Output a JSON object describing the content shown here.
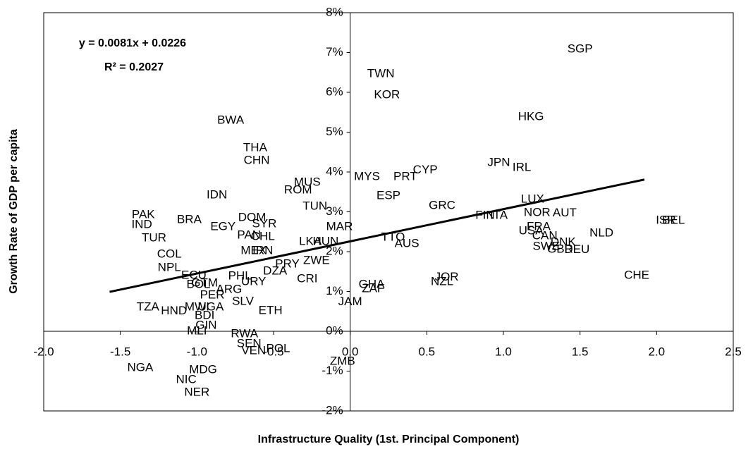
{
  "chart_data": {
    "type": "scatter",
    "x_label": "Infrastructure Quality (1st. Principal Component)",
    "y_label": "Growth Rate of GDP per capita",
    "annotations": [
      "y = 0.0081x + 0.0226",
      "R² = 0.2027"
    ],
    "xlim": [
      -2,
      2.5
    ],
    "ylim": [
      -2,
      8
    ],
    "xticks": [
      {
        "value": -2,
        "label": "-2.0"
      },
      {
        "value": -1.5,
        "label": "-1.5"
      },
      {
        "value": -1,
        "label": "-1.0"
      },
      {
        "value": -0.5,
        "label": "-0.5"
      },
      {
        "value": 0,
        "label": "0.0"
      },
      0.5,
      {
        "value": 1,
        "label": "1.0"
      },
      1.5,
      {
        "value": 2,
        "label": "2.0"
      },
      2.5
    ],
    "yticks": [
      {
        "value": -2,
        "label": "-2%"
      },
      {
        "value": -1,
        "label": "-1%"
      },
      {
        "value": 0,
        "label": "0%"
      },
      {
        "value": 1,
        "label": "1%"
      },
      {
        "value": 2,
        "label": "2%"
      },
      {
        "value": 3,
        "label": "3%"
      },
      {
        "value": 4,
        "label": "4%"
      },
      {
        "value": 5,
        "label": "5%"
      },
      {
        "value": 6,
        "label": "6%"
      },
      {
        "value": 7,
        "label": "7%"
      },
      {
        "value": 8,
        "label": "8%"
      }
    ],
    "trendline": {
      "x": [
        -1.57,
        1.92
      ],
      "y": [
        0.99,
        3.81
      ],
      "color": "#000000"
    },
    "points": {
      "labels": [
        "SGP",
        "TWN",
        "KOR",
        "HKG",
        "BWA",
        "THA",
        "CHN",
        "JPN",
        "IRL",
        "CYP",
        "MYS",
        "PRT",
        "MUS",
        "ROM",
        "IDN",
        "ESP",
        "LUX",
        "GRC",
        "TUN",
        "PAK",
        "FIN",
        "ITA",
        "NOR",
        "AUT",
        "DOM",
        "BRA",
        "ISR",
        "BEL",
        "IND",
        "SYR",
        "EGY",
        "MAR",
        "FRA",
        "USA",
        "NLD",
        "PAN",
        "CHL",
        "TUR",
        "CAN",
        "TTO",
        "LKA",
        "HUN",
        "DNK",
        "AUS",
        "SWE",
        "GBR",
        "DEU",
        "MEX",
        "IRN",
        "COL",
        "ZWE",
        "NPL",
        "PRY",
        "DZA",
        "CHE",
        "ECU",
        "PHL",
        "URY",
        "CRI",
        "JOR",
        "NZL",
        "GHA",
        "ZAF",
        "GTM",
        "BOL",
        "ARG",
        "PER",
        "SLV",
        "ETH",
        "TZA",
        "HND",
        "MWI",
        "UGA",
        "BDI",
        "GIN",
        "MLI",
        "JAM",
        "RWA",
        "SEN",
        "VEN",
        "POL",
        "ZMB",
        "NGA",
        "MDG",
        "NIC",
        "NER"
      ],
      "x": [
        1.5,
        0.2,
        0.24,
        1.18,
        -0.78,
        -0.62,
        -0.61,
        0.97,
        1.12,
        0.49,
        0.11,
        0.36,
        -0.28,
        -0.34,
        -0.87,
        0.25,
        1.19,
        0.6,
        -0.23,
        -1.35,
        0.88,
        0.97,
        1.22,
        1.4,
        -0.64,
        -1.05,
        2.06,
        2.11,
        -1.36,
        -0.56,
        -0.83,
        -0.07,
        1.23,
        1.18,
        1.64,
        -0.66,
        -0.57,
        -1.28,
        1.27,
        0.28,
        -0.26,
        -0.16,
        1.39,
        0.37,
        1.28,
        1.37,
        1.48,
        -0.63,
        -0.57,
        -1.18,
        -0.22,
        -1.18,
        -0.41,
        -0.49,
        1.87,
        -1.02,
        -0.72,
        -0.63,
        -0.28,
        0.63,
        0.6,
        0.14,
        0.15,
        -0.95,
        -0.99,
        -0.79,
        -0.9,
        -0.7,
        -0.52,
        -1.32,
        -1.15,
        -1.0,
        -0.91,
        -0.95,
        -0.94,
        -1.0,
        0.0,
        -0.69,
        -0.66,
        -0.63,
        -0.47,
        -0.05,
        -1.37,
        -0.96,
        -1.07,
        -1.0
      ],
      "y": [
        7.08,
        6.46,
        5.93,
        5.38,
        5.29,
        4.6,
        4.28,
        4.23,
        4.11,
        4.04,
        3.88,
        3.88,
        3.73,
        3.54,
        3.42,
        3.4,
        3.31,
        3.15,
        3.13,
        2.92,
        2.9,
        2.9,
        2.97,
        2.96,
        2.85,
        2.8,
        2.78,
        2.78,
        2.67,
        2.69,
        2.62,
        2.62,
        2.62,
        2.51,
        2.46,
        2.41,
        2.37,
        2.34,
        2.39,
        2.35,
        2.25,
        2.25,
        2.23,
        2.19,
        2.12,
        2.05,
        2.04,
        2.02,
        2.02,
        1.93,
        1.77,
        1.59,
        1.68,
        1.5,
        1.4,
        1.4,
        1.38,
        1.24,
        1.31,
        1.35,
        1.24,
        1.17,
        1.06,
        1.2,
        1.17,
        1.04,
        0.9,
        0.74,
        0.51,
        0.6,
        0.5,
        0.6,
        0.6,
        0.39,
        0.14,
        0.0,
        0.73,
        -0.07,
        -0.32,
        -0.5,
        -0.44,
        -0.76,
        -0.92,
        -0.97,
        -1.22,
        -1.54
      ]
    }
  }
}
